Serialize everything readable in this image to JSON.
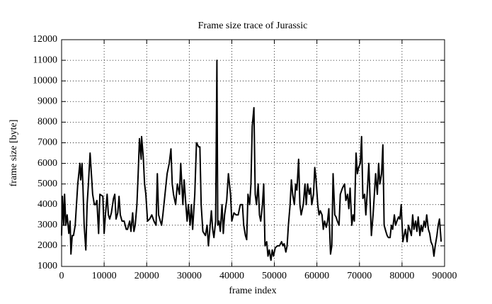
{
  "chart_data": {
    "type": "line",
    "title": "Frame size trace of Jurassic",
    "x_label": "frame index",
    "y_label": "frame size [byte]",
    "color": "#000000",
    "grid": true,
    "xlim": [
      0,
      90000
    ],
    "ylim": [
      1000,
      12000
    ],
    "xticks": [
      0,
      10000,
      20000,
      30000,
      40000,
      50000,
      60000,
      70000,
      80000,
      90000
    ],
    "yticks": [
      1000,
      2000,
      3000,
      4000,
      5000,
      6000,
      7000,
      8000,
      9000,
      10000,
      11000,
      12000
    ],
    "x": [
      0,
      200,
      500,
      700,
      1000,
      1300,
      1700,
      2000,
      2200,
      2500,
      2800,
      3200,
      3500,
      3800,
      4300,
      4500,
      4800,
      5000,
      5300,
      5700,
      6000,
      6300,
      6700,
      7000,
      7300,
      7700,
      8000,
      8300,
      8700,
      9000,
      9700,
      10000,
      10300,
      10700,
      11000,
      11300,
      11700,
      12200,
      12500,
      12800,
      13200,
      13500,
      13800,
      14200,
      14700,
      15200,
      15500,
      16000,
      16300,
      16700,
      17000,
      17300,
      17700,
      18000,
      18300,
      18700,
      18800,
      19200,
      19500,
      19800,
      20200,
      20700,
      21200,
      21700,
      22200,
      22500,
      22800,
      23200,
      23500,
      23800,
      24300,
      24800,
      25300,
      25700,
      26000,
      26300,
      26800,
      27200,
      27700,
      28000,
      28500,
      28800,
      29200,
      29500,
      29800,
      30200,
      30500,
      30800,
      31300,
      31700,
      32200,
      32500,
      32800,
      33200,
      33500,
      33800,
      34200,
      34500,
      34800,
      35200,
      35500,
      35800,
      36200,
      36500,
      36700,
      37000,
      37300,
      37700,
      38000,
      38300,
      38800,
      39200,
      39700,
      40000,
      40500,
      41000,
      41500,
      42000,
      42500,
      42800,
      43200,
      43500,
      43800,
      44200,
      44500,
      44800,
      45200,
      45500,
      45800,
      46200,
      46500,
      46800,
      47200,
      47500,
      47800,
      48200,
      48500,
      48800,
      49200,
      49500,
      49800,
      50200,
      50700,
      51200,
      51700,
      52000,
      52300,
      52700,
      53000,
      53300,
      53700,
      54000,
      54300,
      54700,
      55000,
      55300,
      55700,
      56000,
      56300,
      56800,
      57200,
      57500,
      57800,
      58200,
      58500,
      58800,
      59200,
      59500,
      59800,
      60200,
      60500,
      60800,
      61200,
      61500,
      61800,
      62200,
      62500,
      62800,
      63200,
      63500,
      63800,
      64200,
      64500,
      64800,
      65200,
      65500,
      66000,
      66500,
      66800,
      67200,
      67500,
      67800,
      68200,
      68500,
      68800,
      69200,
      69500,
      69800,
      70200,
      70500,
      70800,
      71200,
      71500,
      71800,
      72200,
      72500,
      72800,
      73200,
      73500,
      73800,
      74200,
      74500,
      74800,
      75200,
      75500,
      75800,
      76200,
      76500,
      76800,
      77200,
      77500,
      77800,
      78200,
      78500,
      78800,
      79200,
      79500,
      79800,
      80200,
      80500,
      80800,
      81200,
      81500,
      81800,
      82200,
      82500,
      82800,
      83200,
      83500,
      83800,
      84200,
      84500,
      84800,
      85200,
      85500,
      85800,
      86200,
      86500,
      86800,
      87200,
      87500,
      87800,
      88200,
      88500,
      88800,
      89200
    ],
    "values": [
      2500,
      4400,
      3000,
      4500,
      3000,
      3500,
      2600,
      3200,
      1600,
      2500,
      2500,
      3000,
      4000,
      5000,
      6000,
      5200,
      6000,
      5000,
      3000,
      1800,
      4000,
      5000,
      6500,
      5500,
      4500,
      4000,
      4000,
      4200,
      2600,
      4500,
      4400,
      2600,
      3500,
      4500,
      3500,
      3300,
      3600,
      4300,
      4500,
      3300,
      3600,
      4400,
      3500,
      3200,
      3200,
      2800,
      2800,
      3200,
      2700,
      3600,
      2700,
      3000,
      4000,
      5500,
      7200,
      6200,
      7300,
      6300,
      5000,
      4500,
      3200,
      3300,
      3500,
      3200,
      3000,
      5500,
      3500,
      3200,
      3000,
      3500,
      4500,
      5500,
      6000,
      6700,
      5000,
      4500,
      4000,
      5000,
      4500,
      6000,
      4000,
      5200,
      4000,
      3200,
      4000,
      3000,
      4000,
      2800,
      4500,
      7000,
      6800,
      6800,
      4000,
      2700,
      2600,
      2500,
      3000,
      2000,
      2700,
      3700,
      2800,
      2400,
      3200,
      11000,
      3000,
      3200,
      2700,
      4000,
      2600,
      3500,
      4200,
      5500,
      4500,
      3200,
      3600,
      3500,
      3500,
      4000,
      4000,
      3000,
      2500,
      2300,
      4500,
      4000,
      5000,
      7800,
      8700,
      4500,
      4000,
      5000,
      3500,
      3200,
      4000,
      5000,
      2000,
      2200,
      1500,
      1800,
      1300,
      1800,
      1500,
      1900,
      2000,
      2000,
      2200,
      2000,
      2100,
      1700,
      2000,
      3000,
      4000,
      5200,
      4500,
      4000,
      5000,
      4700,
      6200,
      4000,
      3500,
      4000,
      5000,
      4000,
      5000,
      4500,
      4800,
      4000,
      4500,
      5800,
      5200,
      4000,
      3500,
      3700,
      3500,
      2800,
      3200,
      2900,
      3200,
      3800,
      1600,
      2000,
      5500,
      3500,
      3400,
      3200,
      3000,
      4500,
      4800,
      5000,
      4200,
      4500,
      3800,
      4800,
      3000,
      3500,
      3200,
      6500,
      5500,
      5800,
      6000,
      7300,
      4300,
      4500,
      3500,
      4500,
      6000,
      4200,
      2500,
      3500,
      4500,
      5500,
      4500,
      6000,
      5000,
      5500,
      6900,
      3000,
      2700,
      2500,
      2400,
      2400,
      3000,
      2800,
      3500,
      3000,
      3200,
      3400,
      3300,
      4000,
      2200,
      2500,
      2800,
      2200,
      3000,
      2800,
      2500,
      3500,
      2800,
      3200,
      2700,
      3400,
      2500,
      3000,
      2700,
      3200,
      2900,
      3500,
      2800,
      2600,
      2200,
      2000,
      1500,
      2000,
      2500,
      3000,
      3300,
      2200
    ]
  }
}
